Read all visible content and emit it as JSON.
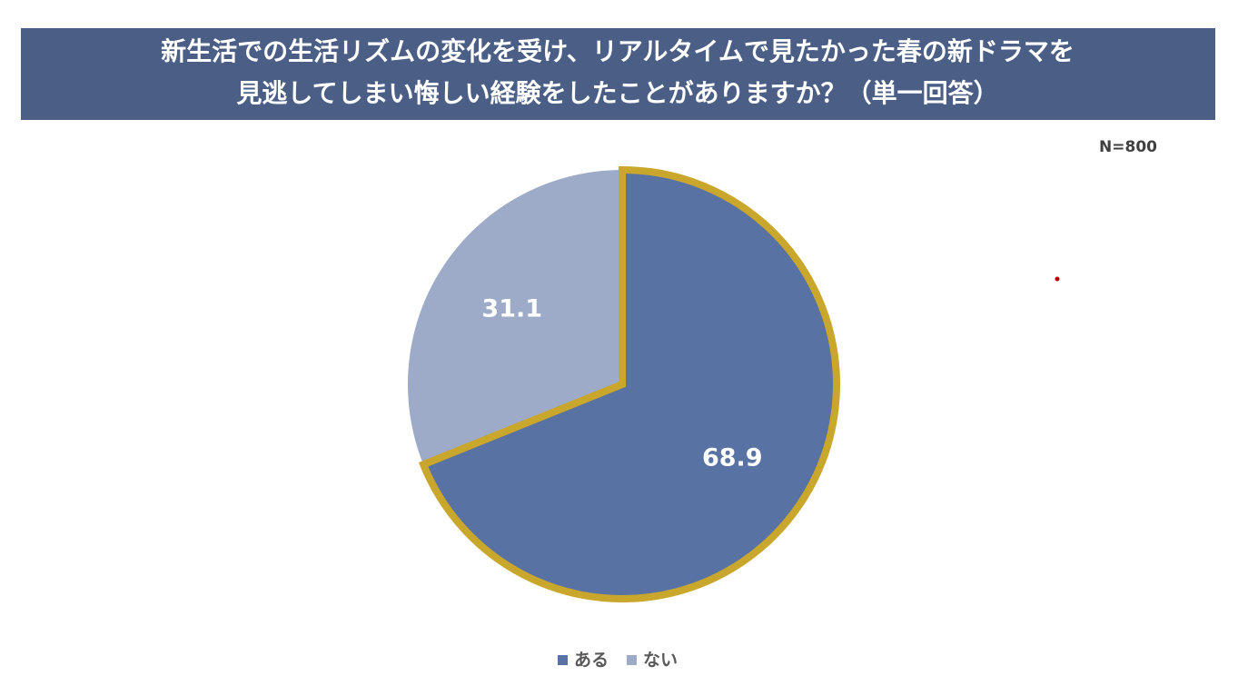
{
  "chart_data": {
    "type": "pie",
    "title": [
      "新生活での生活リズムの変化を受け、リアルタイムで見たかった春の新ドラマを",
      "見逃してしまい悔しい経験をしたことがありますか？（単一回答）"
    ],
    "note": "N=800",
    "categories": [
      "ある",
      "ない"
    ],
    "values": [
      68.9,
      31.1
    ],
    "colors": [
      "#5872a4",
      "#9dabc9"
    ],
    "outline": {
      "index": 0,
      "color": "#c9a62c"
    },
    "legend": "bottom"
  }
}
